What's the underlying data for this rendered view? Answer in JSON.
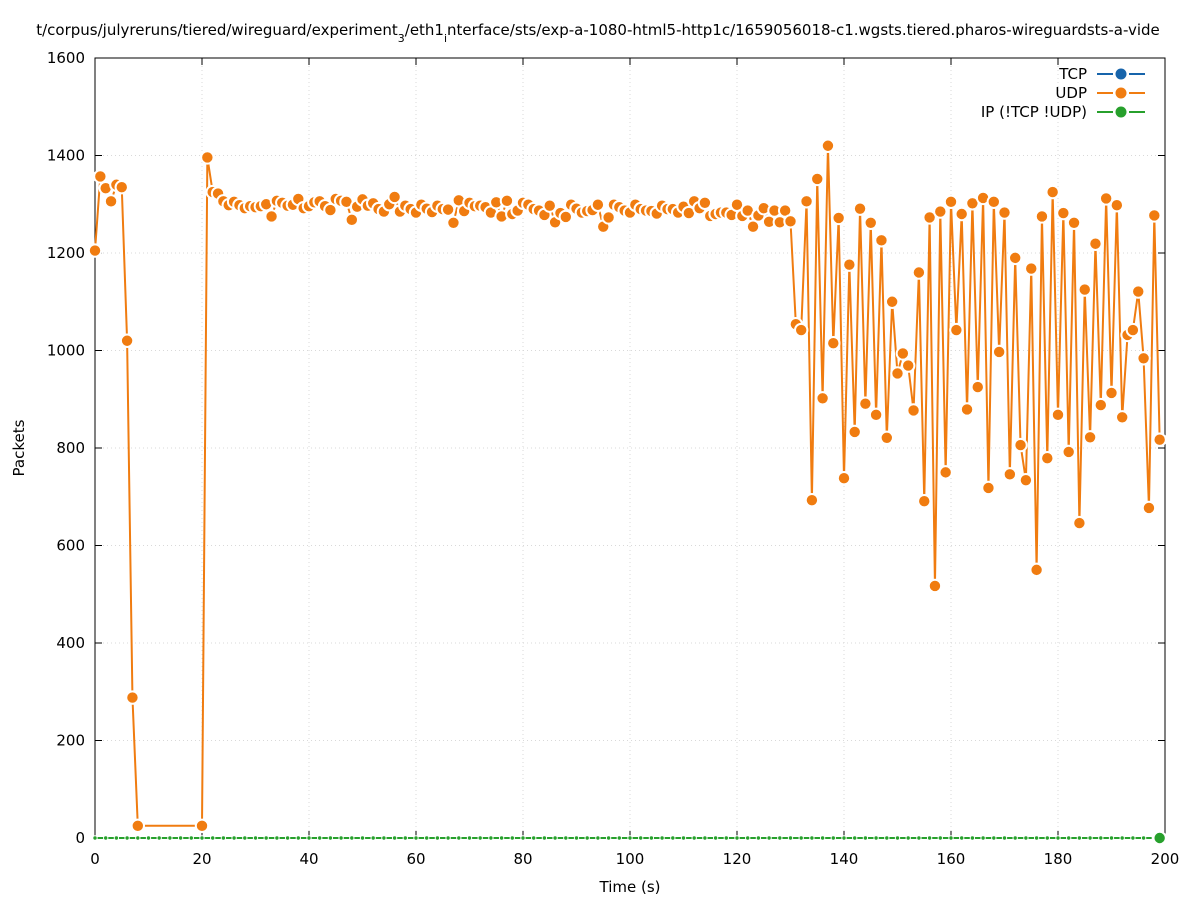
{
  "chart_data": {
    "type": "line",
    "title_parts": [
      "t/corpus/julyreruns/tiered/wireguard/experiment",
      "3",
      "/eth1",
      "i",
      "nterface/sts/exp-a-1080-html5-http1c/1659056018-c1.wgsts.tiered.pharos-wireguardsts-a-vide"
    ],
    "xlabel": "Time (s)",
    "ylabel": "Packets",
    "xlim": [
      0,
      200
    ],
    "ylim": [
      0,
      1600
    ],
    "x_ticks": [
      "0",
      "20",
      "40",
      "60",
      "80",
      "100",
      "120",
      "140",
      "160",
      "180",
      "200"
    ],
    "y_ticks": [
      "0",
      "200",
      "400",
      "600",
      "800",
      "1000",
      "1200",
      "1400",
      "1600"
    ],
    "grid": true,
    "legend_position": "top-right",
    "series": [
      {
        "name": "TCP",
        "color": "#1764ab",
        "x": [],
        "y": []
      },
      {
        "name": "UDP",
        "color": "#f07c10",
        "x": [
          0,
          1,
          2,
          3,
          4,
          5,
          6,
          7,
          8,
          20,
          21,
          22,
          23,
          24,
          25,
          26,
          27,
          28,
          29,
          30,
          31,
          32,
          33,
          34,
          35,
          36,
          37,
          38,
          39,
          40,
          41,
          42,
          43,
          44,
          45,
          46,
          47,
          48,
          49,
          50,
          51,
          52,
          53,
          54,
          55,
          56,
          57,
          58,
          59,
          60,
          61,
          62,
          63,
          64,
          65,
          66,
          67,
          68,
          69,
          70,
          71,
          72,
          73,
          74,
          75,
          76,
          77,
          78,
          79,
          80,
          81,
          82,
          83,
          84,
          85,
          86,
          87,
          88,
          89,
          90,
          91,
          92,
          93,
          94,
          95,
          96,
          97,
          98,
          99,
          100,
          101,
          102,
          103,
          104,
          105,
          106,
          107,
          108,
          109,
          110,
          111,
          112,
          113,
          114,
          115,
          116,
          117,
          118,
          119,
          120,
          121,
          122,
          123,
          124,
          125,
          126,
          127,
          128,
          129,
          130,
          131,
          132,
          133,
          134,
          135,
          136,
          137,
          138,
          139,
          140,
          141,
          142,
          143,
          144,
          145,
          146,
          147,
          148,
          149,
          150,
          151,
          152,
          153,
          154,
          155,
          156,
          157,
          158,
          159,
          160,
          161,
          162,
          163,
          164,
          165,
          166,
          167,
          168,
          169,
          170,
          171,
          172,
          173,
          174,
          175,
          176,
          177,
          178,
          179,
          180,
          181,
          182,
          183,
          184,
          185,
          186,
          187,
          188,
          189,
          190,
          191,
          192,
          193,
          194,
          195,
          196,
          197,
          198,
          199
        ],
        "y": [
          1205,
          1357,
          1333,
          1306,
          1340,
          1335,
          1020,
          288,
          25,
          25,
          1396,
          1325,
          1322,
          1306,
          1298,
          1305,
          1298,
          1292,
          1296,
          1294,
          1296,
          1300,
          1275,
          1307,
          1303,
          1297,
          1299,
          1311,
          1292,
          1296,
          1304,
          1306,
          1296,
          1288,
          1311,
          1307,
          1305,
          1268,
          1295,
          1310,
          1297,
          1302,
          1290,
          1285,
          1300,
          1315,
          1285,
          1297,
          1290,
          1283,
          1299,
          1291,
          1284,
          1297,
          1290,
          1289,
          1262,
          1308,
          1286,
          1303,
          1296,
          1297,
          1294,
          1283,
          1304,
          1275,
          1307,
          1280,
          1287,
          1303,
          1299,
          1290,
          1287,
          1278,
          1297,
          1263,
          1282,
          1274,
          1299,
          1291,
          1283,
          1286,
          1288,
          1299,
          1254,
          1273,
          1299,
          1294,
          1287,
          1283,
          1299,
          1290,
          1287,
          1286,
          1281,
          1297,
          1290,
          1290,
          1283,
          1295,
          1282,
          1306,
          1292,
          1303,
          1276,
          1280,
          1283,
          1283,
          1278,
          1299,
          1276,
          1287,
          1254,
          1277,
          1292,
          1264,
          1287,
          1263,
          1287,
          1265,
          1054,
          1042,
          1306,
          693,
          1352,
          902,
          1420,
          1015,
          1272,
          738,
          1176,
          833,
          1291,
          891,
          1262,
          868,
          1226,
          821,
          1100,
          953,
          994,
          969,
          877,
          1160,
          691,
          1273,
          517,
          1285,
          750,
          1305,
          1042,
          1280,
          879,
          1302,
          925,
          1313,
          718,
          1305,
          997,
          1283,
          746,
          1190,
          806,
          734,
          1168,
          550,
          1275,
          779,
          1325,
          868,
          1282,
          792,
          1262,
          646,
          1125,
          822,
          1219,
          888,
          1312,
          913,
          1298,
          863,
          1032,
          1042,
          1121,
          984,
          677,
          1277,
          817
        ]
      },
      {
        "name": "IP (!TCP  !UDP)",
        "color": "#27a02c",
        "x": [
          0,
          2,
          4,
          6,
          8,
          10,
          12,
          14,
          16,
          18,
          20,
          22,
          24,
          26,
          28,
          30,
          32,
          34,
          36,
          38,
          40,
          42,
          44,
          46,
          48,
          50,
          52,
          54,
          56,
          58,
          60,
          62,
          64,
          66,
          68,
          70,
          72,
          74,
          76,
          78,
          80,
          82,
          84,
          86,
          88,
          90,
          92,
          94,
          96,
          98,
          100,
          102,
          104,
          106,
          108,
          110,
          112,
          114,
          116,
          118,
          120,
          122,
          124,
          126,
          128,
          130,
          132,
          134,
          136,
          138,
          140,
          142,
          144,
          146,
          148,
          150,
          152,
          154,
          156,
          158,
          160,
          162,
          164,
          166,
          168,
          170,
          172,
          174,
          176,
          178,
          180,
          182,
          184,
          186,
          188,
          190,
          192,
          194,
          196,
          198,
          199
        ],
        "y": [
          0,
          0,
          0,
          0,
          0,
          0,
          0,
          0,
          0,
          0,
          0,
          0,
          0,
          0,
          0,
          0,
          0,
          0,
          0,
          0,
          0,
          0,
          0,
          0,
          0,
          0,
          0,
          0,
          0,
          0,
          0,
          0,
          0,
          0,
          0,
          0,
          0,
          0,
          0,
          0,
          0,
          0,
          0,
          0,
          0,
          0,
          0,
          0,
          0,
          0,
          0,
          0,
          0,
          0,
          0,
          0,
          0,
          0,
          0,
          0,
          0,
          0,
          0,
          0,
          0,
          0,
          0,
          0,
          0,
          0,
          0,
          0,
          0,
          0,
          0,
          0,
          0,
          0,
          0,
          0,
          0,
          0,
          0,
          0,
          0,
          0,
          0,
          0,
          0,
          0,
          0,
          0,
          0,
          0,
          0,
          0,
          0,
          0,
          0,
          0,
          0
        ]
      }
    ]
  }
}
